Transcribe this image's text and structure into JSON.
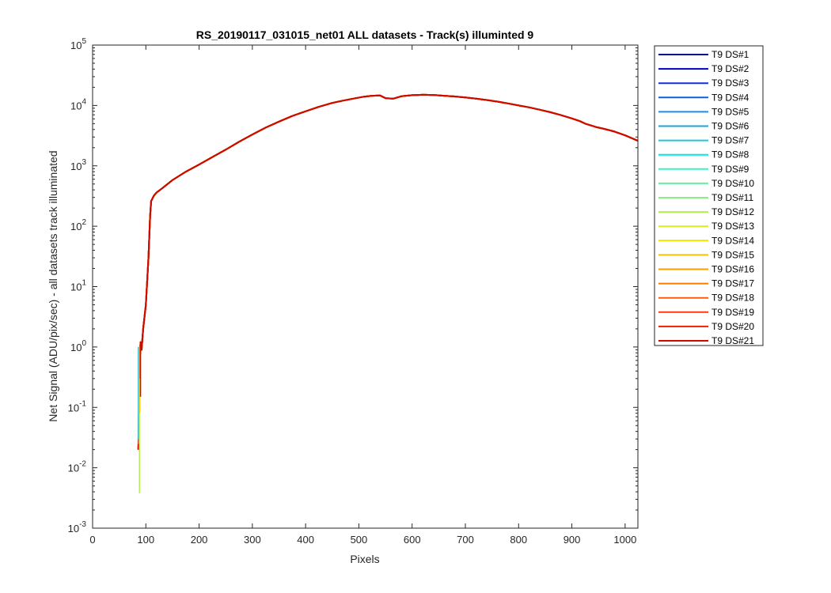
{
  "chart_data": {
    "type": "line",
    "title": "RS_20190117_031015_net01 ALL datasets - Track(s) illuminted 9",
    "xlabel": "Pixels",
    "ylabel": "Net Signal (ADU/pix/sec) - all datasets track illuminated",
    "xlim": [
      0,
      1024
    ],
    "ylim": [
      0.001,
      100000
    ],
    "yscale": "log",
    "x_ticks": [
      0,
      100,
      200,
      300,
      400,
      500,
      600,
      700,
      800,
      900,
      1000
    ],
    "y_tick_exponents": [
      -3,
      -2,
      -1,
      0,
      1,
      2,
      3,
      4,
      5
    ],
    "y_tick_base": "10",
    "grid": false,
    "legend_position": "outside-right",
    "curve": {
      "x": [
        86,
        88,
        90,
        92,
        95,
        100,
        105,
        108,
        110,
        115,
        120,
        130,
        150,
        175,
        200,
        225,
        250,
        275,
        300,
        325,
        350,
        375,
        400,
        425,
        450,
        470,
        490,
        510,
        525,
        540,
        550,
        565,
        580,
        600,
        620,
        640,
        660,
        680,
        700,
        720,
        740,
        760,
        780,
        800,
        820,
        840,
        860,
        880,
        900,
        915,
        925,
        935,
        945,
        960,
        980,
        1000,
        1024
      ],
      "y": [
        0.02,
        0.4,
        1.2,
        0.9,
        2.0,
        5,
        30,
        150,
        260,
        320,
        360,
        420,
        580,
        800,
        1050,
        1400,
        1850,
        2500,
        3300,
        4300,
        5400,
        6700,
        8000,
        9500,
        11000,
        12000,
        13000,
        14000,
        14500,
        14600,
        13200,
        13000,
        14200,
        14800,
        15000,
        14900,
        14500,
        14100,
        13600,
        13000,
        12300,
        11600,
        10800,
        10000,
        9300,
        8500,
        7700,
        6900,
        6100,
        5500,
        5000,
        4700,
        4400,
        4100,
        3700,
        3200,
        2600
      ]
    },
    "low_spikes": [
      {
        "x": 86,
        "y": 0.03
      },
      {
        "x": 87,
        "y": 0.025
      },
      {
        "x": 88,
        "y": 0.0038
      },
      {
        "x": 88.5,
        "y": 0.08
      },
      {
        "x": 89,
        "y": 0.3
      },
      {
        "x": 90,
        "y": 0.15
      }
    ],
    "series": [
      {
        "name": "T9 DS#1",
        "color": "#000f8e"
      },
      {
        "name": "T9 DS#2",
        "color": "#0000c4"
      },
      {
        "name": "T9 DS#3",
        "color": "#0f2fe6"
      },
      {
        "name": "T9 DS#4",
        "color": "#0f5ee8"
      },
      {
        "name": "T9 DS#5",
        "color": "#1a8ee8"
      },
      {
        "name": "T9 DS#6",
        "color": "#1aa6e0"
      },
      {
        "name": "T9 DS#7",
        "color": "#1ec6d6"
      },
      {
        "name": "T9 DS#8",
        "color": "#00e6ea"
      },
      {
        "name": "T9 DS#9",
        "color": "#3bf0c6"
      },
      {
        "name": "T9 DS#10",
        "color": "#60f0a0"
      },
      {
        "name": "T9 DS#11",
        "color": "#88f080"
      },
      {
        "name": "T9 DS#12",
        "color": "#b0f050"
      },
      {
        "name": "T9 DS#13",
        "color": "#d8ee20"
      },
      {
        "name": "T9 DS#14",
        "color": "#f4e000"
      },
      {
        "name": "T9 DS#15",
        "color": "#f8c400"
      },
      {
        "name": "T9 DS#16",
        "color": "#f8a200"
      },
      {
        "name": "T9 DS#17",
        "color": "#f88000"
      },
      {
        "name": "T9 DS#18",
        "color": "#f85e10"
      },
      {
        "name": "T9 DS#19",
        "color": "#f83c10"
      },
      {
        "name": "T9 DS#20",
        "color": "#f01e00"
      },
      {
        "name": "T9 DS#21",
        "color": "#cc0a00"
      }
    ]
  }
}
